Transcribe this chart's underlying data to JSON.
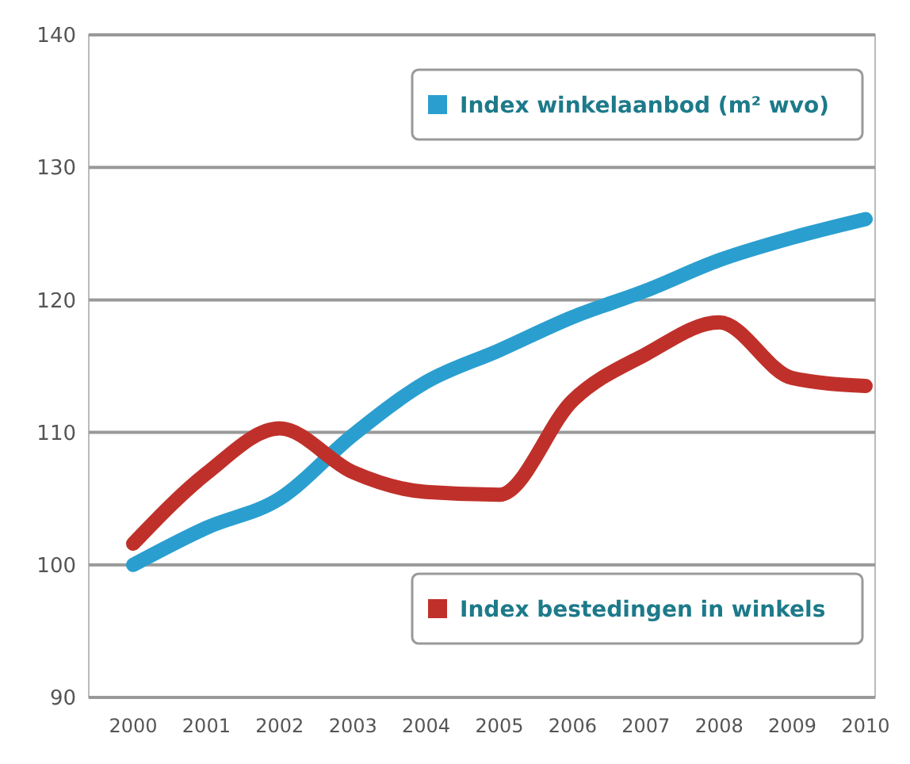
{
  "chart_data": {
    "type": "line",
    "categories": [
      "2000",
      "2001",
      "2002",
      "2003",
      "2004",
      "2005",
      "2006",
      "2007",
      "2008",
      "2009",
      "2010"
    ],
    "series": [
      {
        "name": "Index winkelaanbod (m² wvo)",
        "color": "#2a9fcf",
        "values": [
          100,
          102.8,
          105,
          109.8,
          113.8,
          116.2,
          118.7,
          120.7,
          123,
          124.7,
          126.1
        ]
      },
      {
        "name": "Index bestedingen in winkels",
        "color": "#c0302a",
        "values": [
          101.6,
          106.9,
          110.3,
          107,
          105.5,
          105.3,
          112.4,
          115.9,
          118.3,
          114.1,
          113.5
        ]
      }
    ],
    "ylim": [
      90,
      140
    ],
    "yticks": [
      90,
      100,
      110,
      120,
      130,
      140
    ],
    "grid": "y",
    "legend": "right"
  }
}
